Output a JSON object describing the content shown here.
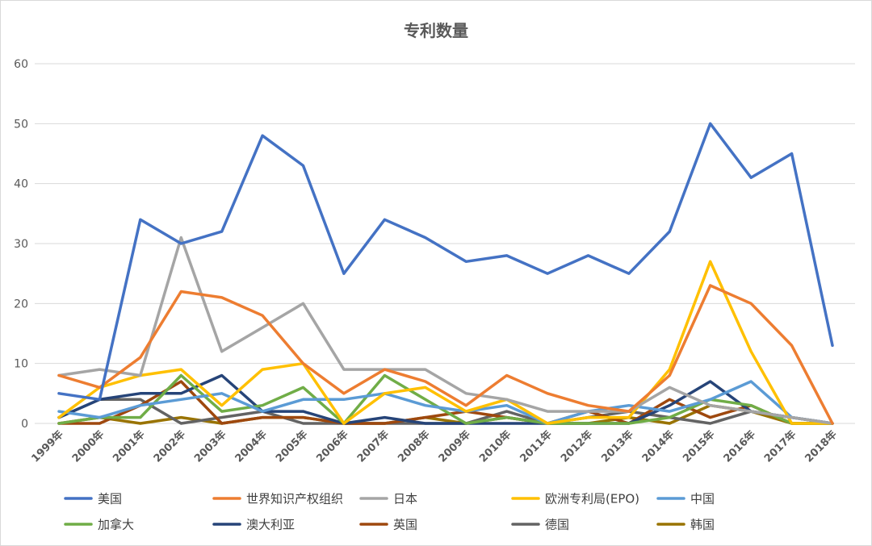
{
  "chart_data": {
    "type": "line",
    "title": "专利数量",
    "ylim": [
      0,
      60
    ],
    "yticks": [
      0,
      10,
      20,
      30,
      40,
      50,
      60
    ],
    "grid": true,
    "legend_position": "bottom",
    "categories": [
      "1999年",
      "2000年",
      "2001年",
      "2002年",
      "2003年",
      "2004年",
      "2005年",
      "2006年",
      "2007年",
      "2008年",
      "2009年",
      "2010年",
      "2011年",
      "2012年",
      "2013年",
      "2014年",
      "2015年",
      "2016年",
      "2017年",
      "2018年"
    ],
    "series": [
      {
        "name": "美国",
        "color": "#4472c4",
        "values": [
          5,
          4,
          34,
          30,
          32,
          48,
          43,
          25,
          34,
          31,
          27,
          28,
          25,
          28,
          25,
          32,
          50,
          41,
          45,
          13
        ]
      },
      {
        "name": "世界知识产权组织",
        "color": "#ed7d31",
        "values": [
          8,
          6,
          11,
          22,
          21,
          18,
          10,
          5,
          9,
          7,
          3,
          8,
          5,
          3,
          2,
          8,
          23,
          20,
          13,
          0
        ]
      },
      {
        "name": "日本",
        "color": "#a5a5a5",
        "values": [
          8,
          9,
          8,
          31,
          12,
          16,
          20,
          9,
          9,
          9,
          5,
          4,
          2,
          2,
          2,
          6,
          3,
          2,
          1,
          0
        ]
      },
      {
        "name": "欧洲专利局(EPO)",
        "color": "#ffc000",
        "values": [
          1,
          6,
          8,
          9,
          3,
          9,
          10,
          0,
          5,
          6,
          2,
          4,
          0,
          1,
          1,
          9,
          27,
          12,
          0,
          0
        ]
      },
      {
        "name": "中国",
        "color": "#5b9bd5",
        "values": [
          2,
          1,
          3,
          4,
          5,
          2,
          4,
          4,
          5,
          3,
          2,
          3,
          0,
          2,
          3,
          2,
          4,
          7,
          1,
          0
        ]
      },
      {
        "name": "加拿大",
        "color": "#70ad47",
        "values": [
          0,
          1,
          1,
          8,
          2,
          3,
          6,
          0,
          8,
          4,
          0,
          1,
          0,
          0,
          0,
          1,
          4,
          3,
          0,
          0
        ]
      },
      {
        "name": "澳大利亚",
        "color": "#264478",
        "values": [
          1,
          4,
          5,
          5,
          8,
          2,
          2,
          0,
          1,
          0,
          0,
          0,
          0,
          0,
          0,
          3,
          7,
          2,
          1,
          0
        ]
      },
      {
        "name": "英国",
        "color": "#9e480e",
        "values": [
          0,
          0,
          3,
          7,
          0,
          1,
          1,
          0,
          0,
          1,
          2,
          1,
          0,
          2,
          0,
          4,
          1,
          3,
          0,
          0
        ]
      },
      {
        "name": "德国",
        "color": "#636363",
        "values": [
          1,
          4,
          4,
          0,
          1,
          2,
          0,
          0,
          0,
          0,
          0,
          2,
          0,
          1,
          2,
          1,
          0,
          2,
          1,
          0
        ]
      },
      {
        "name": "韩国",
        "color": "#997300",
        "values": [
          0,
          1,
          0,
          1,
          0,
          1,
          1,
          0,
          0,
          1,
          0,
          1,
          0,
          0,
          1,
          0,
          3,
          2,
          0,
          0
        ]
      }
    ]
  }
}
